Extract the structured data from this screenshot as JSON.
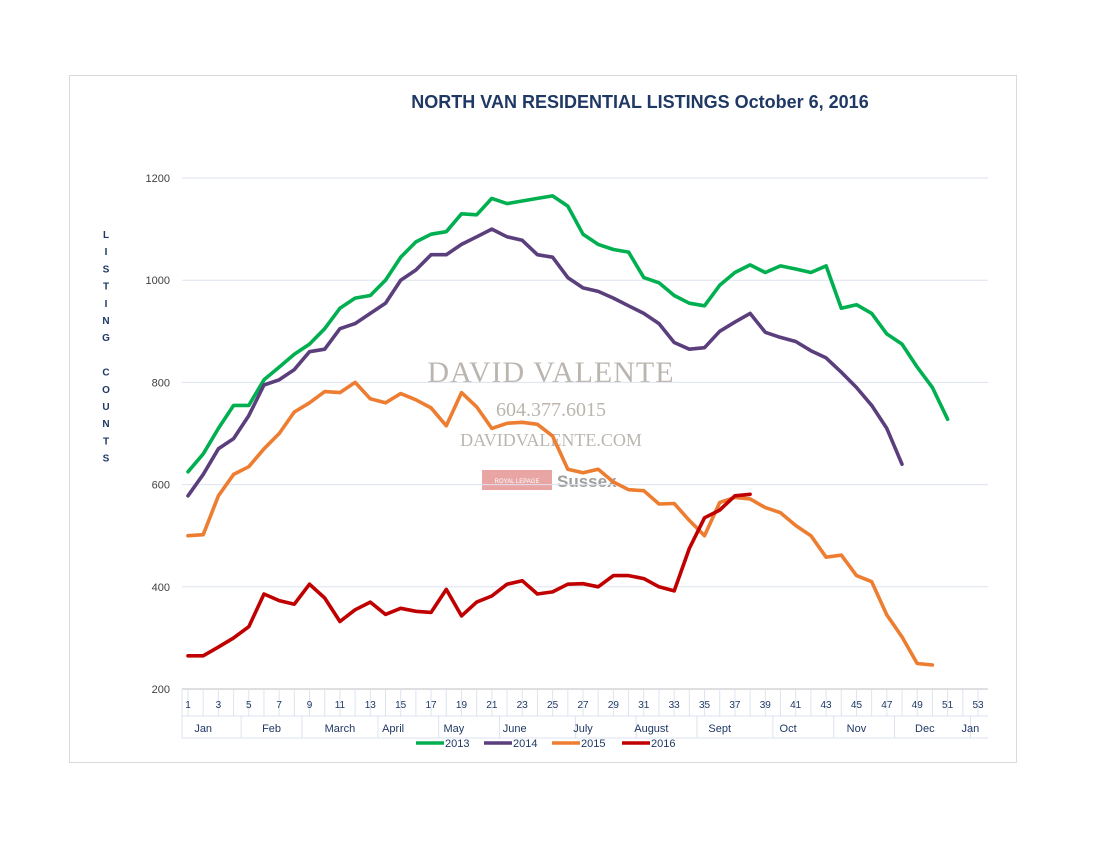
{
  "chart_data": {
    "type": "line",
    "title": "NORTH VAN RESIDENTIAL LISTINGS October 6, 2016",
    "ylabel": "LISTING COUNTS",
    "ylabel_words": [
      "LISTING",
      "COUNTS"
    ],
    "xlabel": "",
    "ylim": [
      200,
      1200
    ],
    "yticks": [
      200,
      400,
      600,
      800,
      1000,
      1200
    ],
    "xlim": [
      1,
      53
    ],
    "xticks": [
      1,
      3,
      5,
      7,
      9,
      11,
      13,
      15,
      17,
      19,
      21,
      23,
      25,
      27,
      29,
      31,
      33,
      35,
      37,
      39,
      41,
      43,
      45,
      47,
      49,
      51,
      53
    ],
    "months": [
      {
        "label": "Jan",
        "week": 2
      },
      {
        "label": "Feb",
        "week": 6.5
      },
      {
        "label": "March",
        "week": 11
      },
      {
        "label": "April",
        "week": 14.5
      },
      {
        "label": "May",
        "week": 18.5
      },
      {
        "label": "June",
        "week": 22.5
      },
      {
        "label": "July",
        "week": 27
      },
      {
        "label": "August",
        "week": 31.5
      },
      {
        "label": "Sept",
        "week": 36
      },
      {
        "label": "Oct",
        "week": 40.5
      },
      {
        "label": "Nov",
        "week": 45
      },
      {
        "label": "Dec",
        "week": 49.5
      },
      {
        "label": "Jan",
        "week": 52.5
      }
    ],
    "month_separators": [
      4.5,
      8.5,
      13.5,
      17.5,
      21.5,
      26.5,
      30.5,
      34.5,
      39.5,
      43.5,
      47.5,
      52.5
    ],
    "legend_position": "bottom",
    "grid": true,
    "series": [
      {
        "name": "2013",
        "color": "#00b050",
        "start_week": 1,
        "values": [
          625,
          660,
          710,
          755,
          755,
          805,
          830,
          855,
          875,
          905,
          945,
          965,
          970,
          1000,
          1045,
          1075,
          1090,
          1095,
          1130,
          1128,
          1160,
          1150,
          1155,
          1160,
          1165,
          1145,
          1090,
          1070,
          1060,
          1055,
          1005,
          995,
          970,
          955,
          950,
          990,
          1015,
          1030,
          1015,
          1028,
          1022,
          1015,
          1028,
          945,
          952,
          935,
          895,
          875,
          830,
          790,
          728
        ]
      },
      {
        "name": "2014",
        "color": "#5b3f7d",
        "start_week": 1,
        "values": [
          578,
          620,
          670,
          690,
          735,
          795,
          805,
          825,
          860,
          865,
          905,
          915,
          935,
          955,
          1000,
          1020,
          1050,
          1050,
          1070,
          1085,
          1100,
          1085,
          1078,
          1050,
          1045,
          1005,
          985,
          978,
          965,
          950,
          935,
          915,
          878,
          865,
          868,
          900,
          918,
          935,
          898,
          888,
          880,
          862,
          848,
          820,
          790,
          755,
          710,
          640
        ]
      },
      {
        "name": "2015",
        "color": "#ed7d31",
        "start_week": 1,
        "values": [
          500,
          502,
          578,
          620,
          635,
          670,
          700,
          742,
          760,
          782,
          780,
          800,
          768,
          760,
          778,
          766,
          750,
          715,
          780,
          752,
          710,
          720,
          722,
          718,
          695,
          630,
          623,
          630,
          605,
          590,
          588,
          562,
          563,
          530,
          500,
          565,
          575,
          572,
          555,
          545,
          520,
          500,
          458,
          462,
          422,
          410,
          345,
          302,
          250,
          247
        ]
      },
      {
        "name": "2016",
        "color": "#c00000",
        "start_week": 1,
        "values": [
          265,
          265,
          282,
          300,
          322,
          386,
          373,
          366,
          405,
          378,
          332,
          355,
          370,
          346,
          358,
          352,
          350,
          395,
          343,
          370,
          382,
          405,
          412,
          386,
          390,
          405,
          406,
          400,
          422,
          422,
          416,
          400,
          392,
          475,
          535,
          550,
          578,
          581
        ]
      }
    ]
  },
  "watermark": {
    "name": "DAVID VALENTE",
    "phone": "604.377.6015",
    "site": "DAVIDVALENTE.COM",
    "brokerage_logo": "ROYAL LEPAGE",
    "brokerage_office": "Sussex"
  }
}
